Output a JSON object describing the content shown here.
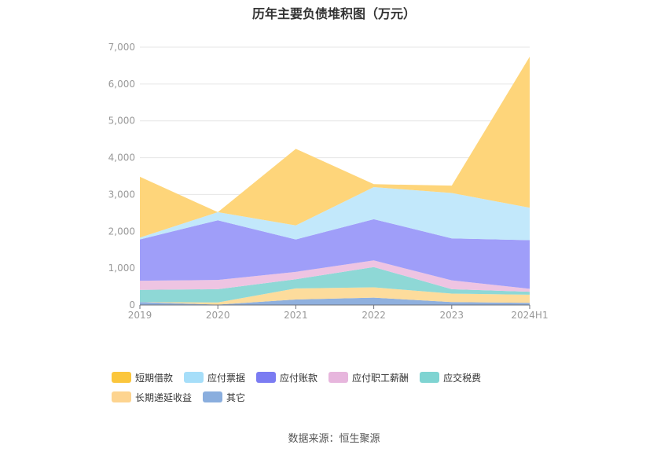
{
  "title": "历年主要负债堆积图（万元）",
  "source": "数据来源：恒生聚源",
  "chart_data": {
    "type": "area",
    "stacked": true,
    "categories": [
      "2019",
      "2020",
      "2021",
      "2022",
      "2023",
      "2024H1"
    ],
    "ylim": [
      0,
      7000
    ],
    "yticks": [
      0,
      1000,
      2000,
      3000,
      4000,
      5000,
      6000,
      7000
    ],
    "ytick_labels": [
      "0",
      "1,000",
      "2,000",
      "3,000",
      "4,000",
      "5,000",
      "6,000",
      "7,000"
    ],
    "grid": true,
    "legend_position": "bottom-left",
    "series": [
      {
        "name": "其它",
        "color": "#8fb0de",
        "values": [
          80,
          10,
          150,
          200,
          80,
          60
        ]
      },
      {
        "name": "长期递延收益",
        "color": "#fddc9c",
        "values": [
          0,
          60,
          300,
          280,
          230,
          220
        ]
      },
      {
        "name": "应交税费",
        "color": "#8ed8d6",
        "values": [
          330,
          360,
          250,
          550,
          120,
          80
        ]
      },
      {
        "name": "应付职工薪酬",
        "color": "#eec4e2",
        "values": [
          250,
          250,
          200,
          180,
          240,
          80
        ]
      },
      {
        "name": "应付账款",
        "color": "#9f9ef9",
        "values": [
          1120,
          1620,
          880,
          1120,
          1140,
          1320
        ]
      },
      {
        "name": "应付票据",
        "color": "#c2e8fb",
        "values": [
          50,
          220,
          380,
          870,
          1230,
          880
        ]
      },
      {
        "name": "短期借款",
        "color": "#fed57a",
        "values": [
          1650,
          0,
          2080,
          80,
          200,
          4100
        ]
      }
    ],
    "legend_order": [
      "短期借款",
      "应付票据",
      "应付账款",
      "应付职工薪酬",
      "应交税费",
      "长期递延收益",
      "其它"
    ],
    "legend_colors": {
      "短期借款": "#fbc63c",
      "应付票据": "#a6def9",
      "应付账款": "#7b7cf2",
      "应付职工薪酬": "#e7b6dd",
      "应交税费": "#7fd4d2",
      "长期递延收益": "#fdd490",
      "其它": "#8aaede"
    }
  }
}
